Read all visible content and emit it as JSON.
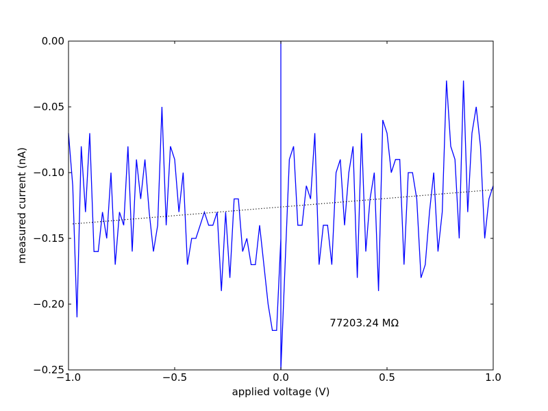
{
  "chart_data": {
    "type": "line",
    "xlabel": "applied voltage (V)",
    "ylabel": "measured current (nA)",
    "xlim": [
      -1.0,
      1.0
    ],
    "ylim": [
      -0.25,
      0.0
    ],
    "grid": false,
    "x_ticks": [
      {
        "value": -1.0,
        "label": "−1.0"
      },
      {
        "value": -0.5,
        "label": "−0.5"
      },
      {
        "value": 0.0,
        "label": "0.0"
      },
      {
        "value": 0.5,
        "label": "0.5"
      },
      {
        "value": 1.0,
        "label": "1.0"
      }
    ],
    "y_ticks": [
      {
        "value": 0.0,
        "label": "0.00"
      },
      {
        "value": -0.05,
        "label": "−0.05"
      },
      {
        "value": -0.1,
        "label": "−0.10"
      },
      {
        "value": -0.15,
        "label": "−0.15"
      },
      {
        "value": -0.2,
        "label": "−0.20"
      },
      {
        "value": -0.25,
        "label": "−0.25"
      }
    ],
    "annotation": {
      "text": "77203.24 MΩ",
      "x": 0.23,
      "y": -0.217
    },
    "series": [
      {
        "style": "solid",
        "color": "#0000ff",
        "x": [
          -1.0,
          -0.98,
          -0.96,
          -0.94,
          -0.92,
          -0.9,
          -0.88,
          -0.86,
          -0.84,
          -0.82,
          -0.8,
          -0.78,
          -0.76,
          -0.74,
          -0.72,
          -0.7,
          -0.68,
          -0.66,
          -0.64,
          -0.62,
          -0.6,
          -0.58,
          -0.56,
          -0.54,
          -0.52,
          -0.5,
          -0.48,
          -0.46,
          -0.44,
          -0.42,
          -0.4,
          -0.38,
          -0.36,
          -0.34,
          -0.32,
          -0.3,
          -0.28,
          -0.26,
          -0.24,
          -0.22,
          -0.2,
          -0.18,
          -0.16,
          -0.14,
          -0.12,
          -0.1,
          -0.08,
          -0.06,
          -0.04,
          -0.02,
          0.0,
          0.0,
          0.0,
          0.02,
          0.04,
          0.06,
          0.08,
          0.1,
          0.12,
          0.14,
          0.16,
          0.18,
          0.2,
          0.22,
          0.24,
          0.26,
          0.28,
          0.3,
          0.32,
          0.34,
          0.36,
          0.38,
          0.4,
          0.42,
          0.44,
          0.46,
          0.48,
          0.5,
          0.52,
          0.54,
          0.56,
          0.58,
          0.6,
          0.62,
          0.64,
          0.66,
          0.68,
          0.7,
          0.72,
          0.74,
          0.76,
          0.78,
          0.8,
          0.82,
          0.84,
          0.86,
          0.88,
          0.9,
          0.92,
          0.94,
          0.96,
          0.98,
          1.0
        ],
        "y": [
          -0.07,
          -0.11,
          -0.21,
          -0.08,
          -0.13,
          -0.07,
          -0.16,
          -0.16,
          -0.13,
          -0.15,
          -0.1,
          -0.17,
          -0.13,
          -0.14,
          -0.08,
          -0.16,
          -0.09,
          -0.12,
          -0.09,
          -0.13,
          -0.16,
          -0.14,
          -0.05,
          -0.14,
          -0.08,
          -0.09,
          -0.13,
          -0.1,
          -0.17,
          -0.15,
          -0.15,
          -0.14,
          -0.13,
          -0.14,
          -0.14,
          -0.13,
          -0.19,
          -0.13,
          -0.18,
          -0.12,
          -0.12,
          -0.16,
          -0.15,
          -0.17,
          -0.17,
          -0.14,
          -0.17,
          -0.2,
          -0.22,
          -0.22,
          -0.15,
          0.0,
          -0.25,
          -0.17,
          -0.09,
          -0.08,
          -0.14,
          -0.14,
          -0.11,
          -0.12,
          -0.07,
          -0.17,
          -0.14,
          -0.14,
          -0.17,
          -0.1,
          -0.09,
          -0.14,
          -0.1,
          -0.08,
          -0.18,
          -0.07,
          -0.16,
          -0.12,
          -0.1,
          -0.19,
          -0.06,
          -0.07,
          -0.1,
          -0.09,
          -0.09,
          -0.17,
          -0.1,
          -0.1,
          -0.12,
          -0.18,
          -0.17,
          -0.13,
          -0.1,
          -0.16,
          -0.13,
          -0.03,
          -0.08,
          -0.09,
          -0.15,
          -0.03,
          -0.13,
          -0.07,
          -0.05,
          -0.08,
          -0.15,
          -0.12,
          -0.11
        ]
      },
      {
        "style": "dotted",
        "color": "#000000",
        "x": [
          -0.98,
          1.0
        ],
        "y": [
          -0.139,
          -0.113
        ]
      }
    ]
  }
}
